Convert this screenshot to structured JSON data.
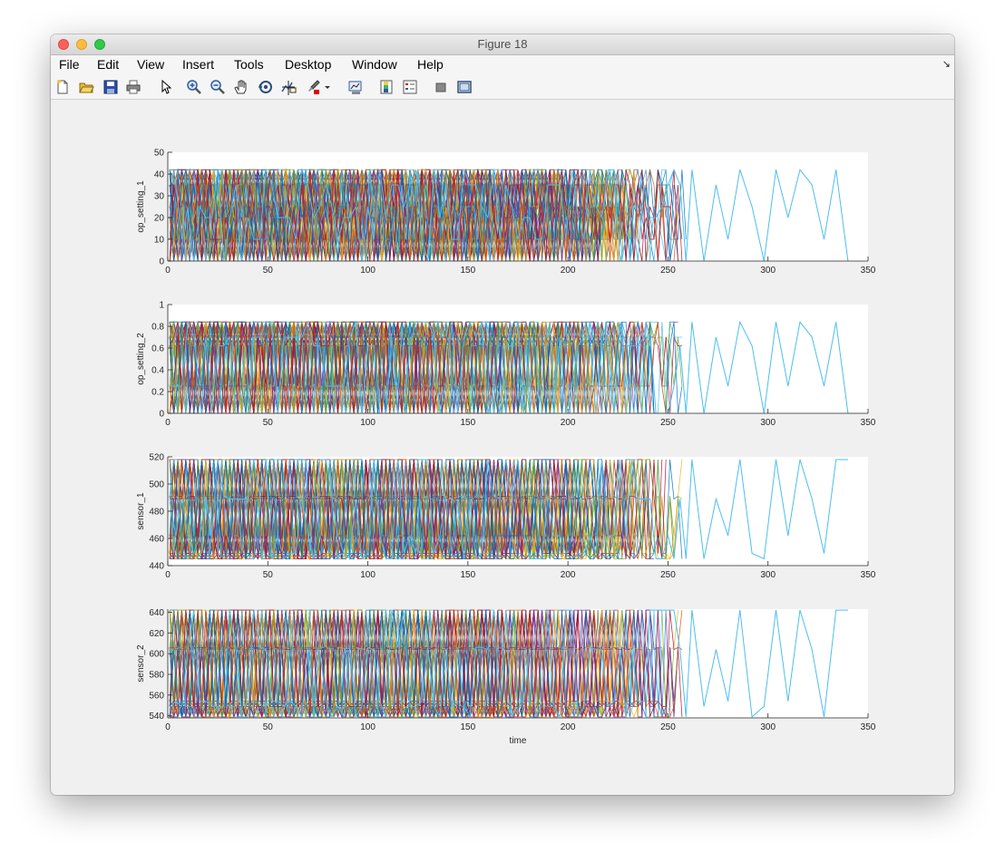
{
  "window": {
    "title": "Figure 18"
  },
  "menubar": {
    "items": [
      "File",
      "Edit",
      "View",
      "Insert",
      "Tools",
      "Desktop",
      "Window",
      "Help"
    ]
  },
  "toolbar": {
    "buttons": [
      "new-figure-icon",
      "open-file-icon",
      "save-icon",
      "print-icon",
      "edit-plot-arrow-icon",
      "zoom-in-icon",
      "zoom-out-icon",
      "pan-hand-icon",
      "rotate-3d-icon",
      "data-cursor-icon",
      "brush-icon",
      "brush-dropdown-icon",
      "link-plot-icon",
      "insert-colorbar-icon",
      "insert-legend-icon",
      "hide-plot-tools-icon",
      "show-plot-tools-icon"
    ]
  },
  "colors": [
    "#0072BD",
    "#D95319",
    "#EDB120",
    "#7E2F8E",
    "#77AC30",
    "#4DBEEE",
    "#A2142F"
  ],
  "chart_data": [
    {
      "type": "line",
      "ylabel": "op_setting_1",
      "xlabel": "",
      "xlim": [
        0,
        350
      ],
      "ylim": [
        0,
        50
      ],
      "xticks": [
        "0",
        "50",
        "100",
        "150",
        "200",
        "250",
        "300",
        "350"
      ],
      "yticks": [
        "0",
        "10",
        "20",
        "30",
        "40",
        "50"
      ],
      "levels": [
        0,
        10,
        20,
        25,
        35,
        42
      ],
      "series_count": 100,
      "max_length": 340,
      "longest_series": {
        "name": "",
        "x": [
          262,
          268,
          274,
          280,
          286,
          292,
          298,
          304,
          310,
          316,
          322,
          328,
          334,
          340
        ],
        "y": [
          42,
          0,
          35,
          10,
          42,
          25,
          0,
          42,
          20,
          42,
          35,
          10,
          42,
          0
        ]
      }
    },
    {
      "type": "line",
      "ylabel": "op_setting_2",
      "xlabel": "",
      "xlim": [
        0,
        350
      ],
      "ylim": [
        0,
        1
      ],
      "xticks": [
        "0",
        "50",
        "100",
        "150",
        "200",
        "250",
        "300",
        "350"
      ],
      "yticks": [
        "0",
        "0.2",
        "0.4",
        "0.6",
        "0.8",
        "1"
      ],
      "levels": [
        0,
        0.25,
        0.62,
        0.7,
        0.84
      ],
      "series_count": 100,
      "max_length": 340,
      "longest_series": {
        "name": "",
        "x": [
          262,
          268,
          274,
          280,
          286,
          292,
          298,
          304,
          310,
          316,
          322,
          328,
          334,
          340
        ],
        "y": [
          0.84,
          0,
          0.7,
          0.25,
          0.84,
          0.62,
          0,
          0.84,
          0.25,
          0.84,
          0.7,
          0.25,
          0.84,
          0
        ]
      }
    },
    {
      "type": "line",
      "ylabel": "sensor_1",
      "xlabel": "",
      "xlim": [
        0,
        350
      ],
      "ylim": [
        440,
        520
      ],
      "xticks": [
        "0",
        "50",
        "100",
        "150",
        "200",
        "250",
        "300",
        "350"
      ],
      "yticks": [
        "440",
        "460",
        "480",
        "500",
        "520"
      ],
      "levels": [
        445,
        449,
        462,
        489,
        491,
        518
      ],
      "series_count": 100,
      "max_length": 340,
      "longest_series": {
        "name": "",
        "x": [
          262,
          268,
          274,
          280,
          286,
          292,
          298,
          304,
          310,
          316,
          322,
          328,
          334,
          340
        ],
        "y": [
          518,
          445,
          489,
          462,
          518,
          449,
          445,
          518,
          462,
          518,
          489,
          449,
          518,
          518
        ]
      }
    },
    {
      "type": "line",
      "ylabel": "sensor_2",
      "xlabel": "time",
      "xlim": [
        0,
        350
      ],
      "ylim": [
        538,
        643
      ],
      "xticks": [
        "0",
        "50",
        "100",
        "150",
        "200",
        "250",
        "300",
        "350"
      ],
      "yticks": [
        "540",
        "560",
        "580",
        "600",
        "620",
        "640"
      ],
      "levels": [
        539,
        549,
        554,
        604,
        606,
        642
      ],
      "series_count": 100,
      "max_length": 340,
      "longest_series": {
        "name": "",
        "x": [
          262,
          268,
          274,
          280,
          286,
          292,
          298,
          304,
          310,
          316,
          322,
          328,
          334,
          340
        ],
        "y": [
          642,
          549,
          604,
          554,
          642,
          539,
          549,
          642,
          554,
          642,
          604,
          539,
          642,
          642
        ]
      }
    }
  ]
}
